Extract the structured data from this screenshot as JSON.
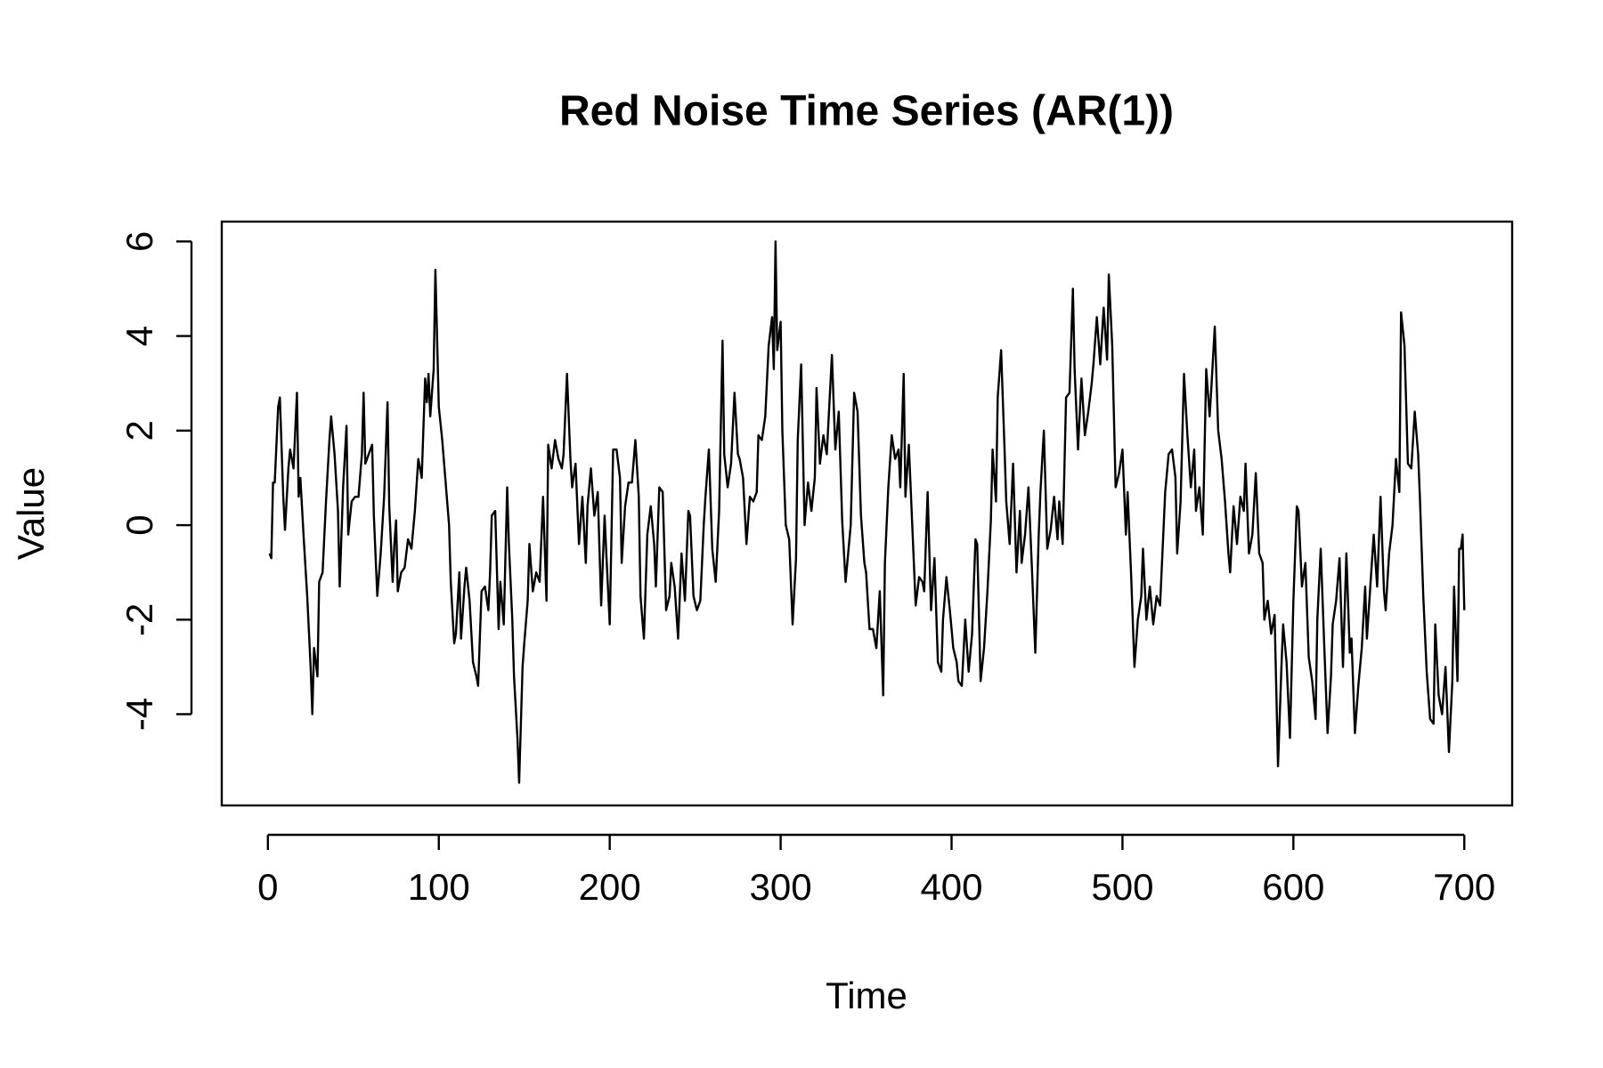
{
  "chart_data": {
    "type": "line",
    "title": "Red Noise Time Series (AR(1))",
    "x_label": "Time",
    "y_label": "Value",
    "xlim": [
      -27,
      728
    ],
    "ylim": [
      -5.93,
      6.42
    ],
    "xticks": [
      0,
      100,
      200,
      300,
      400,
      500,
      600,
      700
    ],
    "yticks": [
      -4,
      -2,
      0,
      2,
      4,
      6
    ],
    "x": [
      1,
      2,
      3,
      4,
      6,
      7,
      9,
      10,
      12,
      13,
      15,
      17,
      18,
      19,
      21,
      23,
      25,
      26,
      27,
      29,
      30,
      32,
      34,
      36,
      37,
      39,
      41,
      42,
      44,
      46,
      47,
      49,
      51,
      53,
      55,
      56,
      57,
      59,
      61,
      62,
      64,
      66,
      68,
      70,
      71,
      73,
      74,
      75,
      76,
      78,
      80,
      82,
      84,
      86,
      88,
      90,
      92,
      93,
      94,
      95,
      97,
      98,
      100,
      102,
      104,
      106,
      107,
      109,
      110,
      112,
      113,
      115,
      116,
      118,
      120,
      122,
      123,
      125,
      127,
      129,
      130,
      131,
      133,
      135,
      136,
      138,
      140,
      141,
      143,
      144,
      146,
      147,
      149,
      150,
      152,
      153,
      155,
      157,
      159,
      161,
      163,
      164,
      166,
      168,
      170,
      172,
      173,
      175,
      177,
      178,
      180,
      182,
      184,
      186,
      187,
      189,
      191,
      193,
      195,
      197,
      198,
      200,
      202,
      204,
      206,
      207,
      209,
      211,
      213,
      215,
      217,
      218,
      220,
      222,
      224,
      226,
      227,
      229,
      231,
      233,
      235,
      236,
      238,
      240,
      242,
      244,
      246,
      247,
      249,
      251,
      253,
      255,
      256,
      258,
      260,
      262,
      264,
      266,
      267,
      269,
      271,
      273,
      275,
      276,
      278,
      280,
      282,
      284,
      286,
      287,
      289,
      291,
      293,
      295,
      296,
      297,
      298,
      300,
      301,
      303,
      305,
      307,
      309,
      310,
      312,
      314,
      316,
      318,
      320,
      321,
      323,
      325,
      327,
      329,
      330,
      332,
      334,
      336,
      338,
      340,
      341,
      343,
      345,
      347,
      349,
      350,
      352,
      354,
      356,
      358,
      360,
      361,
      363,
      365,
      367,
      369,
      370,
      372,
      373,
      375,
      377,
      379,
      381,
      383,
      384,
      386,
      388,
      390,
      392,
      394,
      395,
      397,
      399,
      401,
      403,
      404,
      406,
      408,
      410,
      412,
      414,
      415,
      417,
      419,
      421,
      423,
      424,
      426,
      427,
      429,
      431,
      432,
      434,
      436,
      438,
      440,
      441,
      443,
      445,
      447,
      449,
      451,
      452,
      454,
      456,
      458,
      460,
      462,
      463,
      465,
      467,
      469,
      471,
      472,
      474,
      476,
      478,
      480,
      482,
      483,
      485,
      487,
      489,
      491,
      492,
      494,
      496,
      498,
      500,
      502,
      503,
      505,
      507,
      509,
      511,
      512,
      514,
      516,
      518,
      520,
      522,
      523,
      525,
      527,
      529,
      531,
      532,
      534,
      536,
      538,
      540,
      542,
      543,
      545,
      547,
      549,
      551,
      552,
      554,
      556,
      558,
      560,
      562,
      563,
      565,
      567,
      569,
      571,
      572,
      574,
      576,
      578,
      580,
      582,
      583,
      585,
      587,
      589,
      591,
      593,
      594,
      596,
      598,
      600,
      602,
      603,
      605,
      607,
      609,
      611,
      613,
      614,
      616,
      618,
      620,
      622,
      623,
      625,
      627,
      629,
      631,
      633,
      634,
      636,
      638,
      640,
      642,
      643,
      645,
      647,
      649,
      651,
      653,
      654,
      656,
      658,
      660,
      662,
      663,
      665,
      667,
      669,
      671,
      673,
      674,
      676,
      678,
      680,
      682,
      683,
      685,
      687,
      689,
      691,
      693,
      694,
      696,
      697,
      698,
      699,
      700
    ],
    "series": [
      {
        "color": "#000000",
        "values": [
          -0.6,
          -0.7,
          0.9,
          0.9,
          2.5,
          2.7,
          0.6,
          -0.1,
          1.2,
          1.6,
          1.2,
          2.8,
          0.6,
          1.0,
          -0.3,
          -1.5,
          -3.0,
          -4.0,
          -2.6,
          -3.2,
          -1.2,
          -1.0,
          0.5,
          1.8,
          2.3,
          1.5,
          0.3,
          -1.3,
          0.8,
          2.1,
          -0.2,
          0.5,
          0.6,
          0.6,
          1.5,
          2.8,
          1.3,
          1.5,
          1.7,
          0.2,
          -1.5,
          -0.6,
          0.6,
          2.6,
          0.4,
          -1.2,
          -0.4,
          0.1,
          -1.4,
          -1.0,
          -0.9,
          -0.3,
          -0.5,
          0.3,
          1.4,
          1.0,
          3.1,
          2.6,
          3.2,
          2.3,
          3.3,
          5.4,
          2.5,
          1.8,
          0.9,
          0.0,
          -1.2,
          -2.5,
          -2.3,
          -1.0,
          -2.4,
          -1.3,
          -0.9,
          -1.6,
          -2.9,
          -3.2,
          -3.4,
          -1.4,
          -1.3,
          -1.8,
          -1.0,
          0.2,
          0.3,
          -2.2,
          -1.2,
          -2.1,
          0.8,
          -0.4,
          -2.0,
          -3.2,
          -4.5,
          -5.45,
          -3.0,
          -2.5,
          -1.6,
          -0.4,
          -1.4,
          -1.0,
          -1.2,
          0.6,
          -1.6,
          1.7,
          1.2,
          1.8,
          1.4,
          1.2,
          1.5,
          3.2,
          1.4,
          0.8,
          1.3,
          -0.4,
          0.6,
          -0.8,
          0.4,
          1.2,
          0.2,
          0.7,
          -1.7,
          0.2,
          -0.6,
          -2.1,
          1.6,
          1.6,
          1.0,
          -0.8,
          0.4,
          0.9,
          0.9,
          1.8,
          0.6,
          -1.5,
          -2.4,
          -0.2,
          0.4,
          -0.4,
          -1.3,
          0.8,
          0.7,
          -1.8,
          -1.5,
          -0.8,
          -1.3,
          -2.4,
          -0.6,
          -1.6,
          0.3,
          0.2,
          -1.5,
          -1.8,
          -1.6,
          0.0,
          0.6,
          1.6,
          -0.5,
          -1.2,
          0.3,
          3.9,
          1.5,
          0.8,
          1.3,
          2.8,
          1.5,
          1.4,
          1.0,
          -0.4,
          0.6,
          0.5,
          0.7,
          1.9,
          1.8,
          2.3,
          3.8,
          4.4,
          3.3,
          6.0,
          3.7,
          4.3,
          2.0,
          0.0,
          -0.3,
          -2.1,
          -0.7,
          1.8,
          3.4,
          0.0,
          0.9,
          0.3,
          1.0,
          2.9,
          1.3,
          1.9,
          1.5,
          2.9,
          3.6,
          1.6,
          2.4,
          0.1,
          -1.2,
          -0.4,
          0.0,
          2.8,
          2.4,
          0.2,
          -0.8,
          -1.0,
          -2.2,
          -2.2,
          -2.6,
          -1.4,
          -3.6,
          -0.8,
          0.8,
          1.9,
          1.4,
          1.6,
          0.8,
          3.2,
          0.6,
          1.7,
          0.0,
          -1.7,
          -1.1,
          -1.2,
          -1.4,
          0.7,
          -1.8,
          -0.7,
          -2.9,
          -3.1,
          -2.0,
          -1.1,
          -1.8,
          -2.6,
          -2.9,
          -3.3,
          -3.4,
          -2.0,
          -3.1,
          -2.3,
          -0.3,
          -0.4,
          -3.3,
          -2.6,
          -1.4,
          0.1,
          1.6,
          0.5,
          2.7,
          3.7,
          1.6,
          0.5,
          -0.4,
          1.3,
          -1.0,
          0.3,
          -0.8,
          -0.2,
          0.8,
          -0.9,
          -2.7,
          -0.2,
          0.7,
          2.0,
          -0.5,
          -0.1,
          0.6,
          -0.3,
          0.5,
          -0.4,
          2.7,
          2.8,
          5.0,
          3.3,
          1.6,
          3.1,
          1.9,
          2.4,
          3.0,
          3.4,
          4.4,
          3.4,
          4.6,
          3.5,
          5.3,
          3.8,
          0.8,
          1.1,
          1.6,
          -0.2,
          0.7,
          -1.0,
          -3.0,
          -2.0,
          -1.5,
          -0.5,
          -2.0,
          -1.3,
          -2.1,
          -1.5,
          -1.7,
          -0.9,
          0.7,
          1.5,
          1.6,
          1.0,
          -0.6,
          0.5,
          3.2,
          1.9,
          0.8,
          1.6,
          0.3,
          0.8,
          -0.2,
          3.3,
          2.3,
          2.9,
          4.2,
          2.0,
          1.4,
          0.5,
          -0.6,
          -1.0,
          0.4,
          -0.4,
          0.6,
          0.3,
          1.3,
          -0.6,
          -0.2,
          1.1,
          -0.6,
          -0.8,
          -2.0,
          -1.6,
          -2.3,
          -1.9,
          -5.1,
          -3.0,
          -2.1,
          -2.9,
          -4.5,
          -1.6,
          0.4,
          0.3,
          -1.3,
          -0.8,
          -2.8,
          -3.3,
          -4.1,
          -2.0,
          -0.5,
          -2.5,
          -4.4,
          -3.2,
          -2.1,
          -1.6,
          -0.7,
          -3.0,
          -0.6,
          -2.7,
          -2.4,
          -4.4,
          -3.4,
          -2.6,
          -1.3,
          -2.4,
          -1.3,
          -0.2,
          -1.3,
          0.6,
          -1.4,
          -1.8,
          -0.6,
          0.0,
          1.4,
          0.7,
          4.5,
          3.8,
          1.3,
          1.2,
          2.4,
          1.5,
          0.6,
          -1.5,
          -3.1,
          -4.1,
          -4.2,
          -2.1,
          -3.6,
          -4.0,
          -3.0,
          -4.8,
          -3.3,
          -1.3,
          -3.3,
          -0.5,
          -0.5,
          -0.2,
          -1.8
        ]
      }
    ]
  }
}
